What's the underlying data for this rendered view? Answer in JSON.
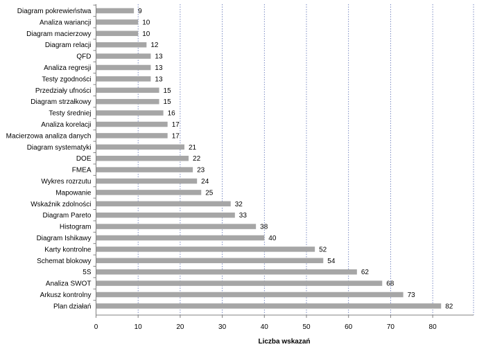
{
  "chart_data": {
    "type": "bar",
    "orientation": "horizontal",
    "xlabel": "Liczba wskazań",
    "xlim": [
      0,
      90
    ],
    "xticks": [
      "0",
      "10",
      "20",
      "30",
      "40",
      "50",
      "60",
      "70",
      "80"
    ],
    "grid": "vertical dotted",
    "bar_color": "#a6a6a6",
    "grid_color": "#5a6eb4",
    "categories": [
      "Diagram pokrewieństwa",
      "Analiza wariancji",
      "Diagram macierzowy",
      "Diagram relacji",
      "QFD",
      "Analiza regresji",
      "Testy zgodności",
      "Przedziały ufności",
      "Diagram strzałkowy",
      "Testy średniej",
      "Analiza korelacji",
      "Macierzowa analiza danych",
      "Diagram systematyki",
      "DOE",
      "FMEA",
      "Wykres rozrzutu",
      "Mapowanie",
      "Wskaźnik zdolności",
      "Diagram Pareto",
      "Histogram",
      "Diagram Ishikawy",
      "Karty kontrolne",
      "Schemat blokowy",
      "5S",
      "Analiza SWOT",
      "Arkusz kontrolny",
      "Plan działań"
    ],
    "values": [
      9,
      10,
      10,
      12,
      13,
      13,
      13,
      15,
      15,
      16,
      17,
      17,
      21,
      22,
      23,
      24,
      25,
      32,
      33,
      38,
      40,
      52,
      54,
      62,
      68,
      73,
      82
    ]
  }
}
